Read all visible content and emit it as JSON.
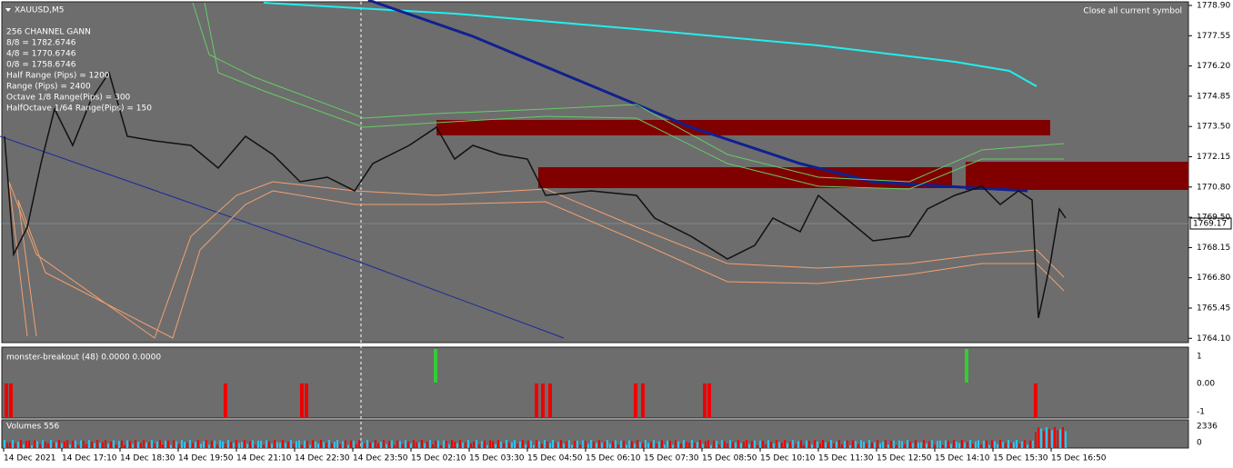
{
  "header": {
    "symbol": "XAUUSD,M5",
    "button": "Close all current symbol"
  },
  "info_lines": [
    "256 CHANNEL GANN",
    "8/8 = 1782.6746",
    "4/8 = 1770.6746",
    "0/8 = 1758.6746",
    "Half Range (Pips) = 1200",
    "Range (Pips) = 2400",
    "Octave 1/8 Range(Pips) = 300",
    "HalfOctave 1/64 Range(Pips) = 150"
  ],
  "price_axis": {
    "labels": [
      "1778.90",
      "1777.55",
      "1776.20",
      "1774.85",
      "1773.50",
      "1772.15",
      "1770.80",
      "1769.50",
      "1768.15",
      "1766.80",
      "1765.45",
      "1764.10"
    ],
    "current_price": "1769.17"
  },
  "indicator": {
    "label": "monster-breakout (48) 0.0000 0.0000",
    "axis": [
      "1",
      "0.00",
      "-1"
    ]
  },
  "volume": {
    "label": "Volumes 556",
    "axis": [
      "2336",
      "0"
    ]
  },
  "time_axis": [
    "14 Dec 2021",
    "14 Dec 17:10",
    "14 Dec 18:30",
    "14 Dec 19:50",
    "14 Dec 21:10",
    "14 Dec 22:30",
    "14 Dec 23:50",
    "15 Dec 02:10",
    "15 Dec 03:30",
    "15 Dec 04:50",
    "15 Dec 06:10",
    "15 Dec 07:30",
    "15 Dec 08:50",
    "15 Dec 10:10",
    "15 Dec 11:30",
    "15 Dec 12:50",
    "15 Dec 14:10",
    "15 Dec 15:30",
    "15 Dec 16:50"
  ]
}
